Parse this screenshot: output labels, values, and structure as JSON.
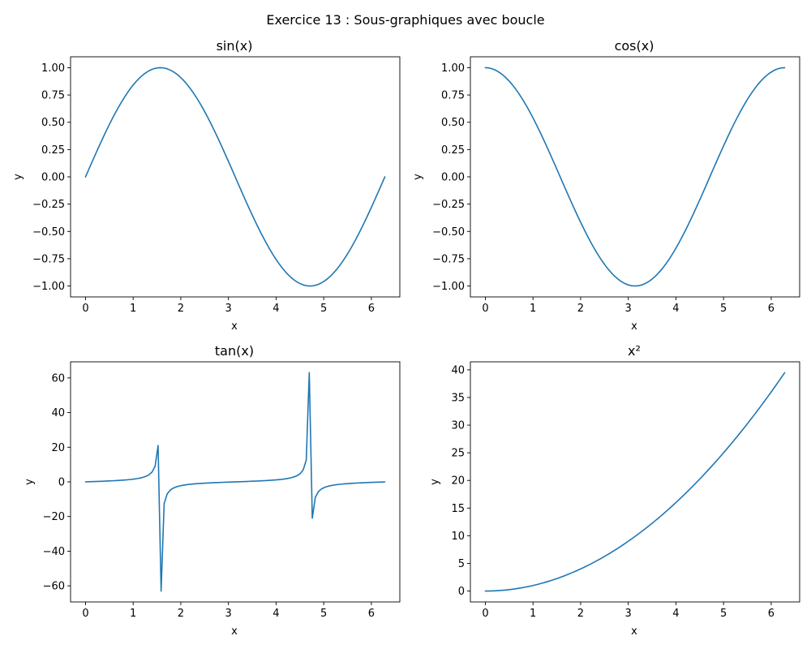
{
  "figure": {
    "suptitle": "Exercice 13 : Sous-graphiques avec boucle"
  },
  "chart_data": [
    {
      "type": "line",
      "title": "sin(x)",
      "xlabel": "x",
      "ylabel": "y",
      "function": "sin",
      "xlim": [
        -0.3142,
        6.5973
      ],
      "ylim": [
        -1.1,
        1.1
      ],
      "xticks": [
        0,
        1,
        2,
        3,
        4,
        5,
        6
      ],
      "xtick_labels": [
        "0",
        "1",
        "2",
        "3",
        "4",
        "5",
        "6"
      ],
      "yticks": [
        -1.0,
        -0.75,
        -0.5,
        -0.25,
        0.0,
        0.25,
        0.5,
        0.75,
        1.0
      ],
      "ytick_labels": [
        "−1.00",
        "−0.75",
        "−0.50",
        "−0.25",
        "0.00",
        "0.25",
        "0.50",
        "0.75",
        "1.00"
      ],
      "x_range": [
        0,
        6.2832
      ],
      "color": "#1f77b4"
    },
    {
      "type": "line",
      "title": "cos(x)",
      "xlabel": "x",
      "ylabel": "y",
      "function": "cos",
      "xlim": [
        -0.3142,
        6.5973
      ],
      "ylim": [
        -1.1,
        1.1
      ],
      "xticks": [
        0,
        1,
        2,
        3,
        4,
        5,
        6
      ],
      "xtick_labels": [
        "0",
        "1",
        "2",
        "3",
        "4",
        "5",
        "6"
      ],
      "yticks": [
        -1.0,
        -0.75,
        -0.5,
        -0.25,
        0.0,
        0.25,
        0.5,
        0.75,
        1.0
      ],
      "ytick_labels": [
        "−1.00",
        "−0.75",
        "−0.50",
        "−0.25",
        "0.00",
        "0.25",
        "0.50",
        "0.75",
        "1.00"
      ],
      "x_range": [
        0,
        6.2832
      ],
      "color": "#1f77b4"
    },
    {
      "type": "line",
      "title": "tan(x)",
      "xlabel": "x",
      "ylabel": "y",
      "function": "tan",
      "xlim": [
        -0.3142,
        6.5973
      ],
      "ylim": [
        -69.3,
        69.3
      ],
      "xticks": [
        0,
        1,
        2,
        3,
        4,
        5,
        6
      ],
      "xtick_labels": [
        "0",
        "1",
        "2",
        "3",
        "4",
        "5",
        "6"
      ],
      "yticks": [
        -60,
        -40,
        -20,
        0,
        20,
        40,
        60
      ],
      "ytick_labels": [
        "−60",
        "−40",
        "−20",
        "0",
        "20",
        "40",
        "60"
      ],
      "x_range": [
        0,
        6.2832
      ],
      "color": "#1f77b4"
    },
    {
      "type": "line",
      "title": "x²",
      "xlabel": "x",
      "ylabel": "y",
      "function": "square",
      "xlim": [
        -0.3142,
        6.5973
      ],
      "ylim": [
        -1.974,
        41.45
      ],
      "xticks": [
        0,
        1,
        2,
        3,
        4,
        5,
        6
      ],
      "xtick_labels": [
        "0",
        "1",
        "2",
        "3",
        "4",
        "5",
        "6"
      ],
      "yticks": [
        0,
        5,
        10,
        15,
        20,
        25,
        30,
        35,
        40
      ],
      "ytick_labels": [
        "0",
        "5",
        "10",
        "15",
        "20",
        "25",
        "30",
        "35",
        "40"
      ],
      "x_range": [
        0,
        6.2832
      ],
      "color": "#1f77b4"
    }
  ]
}
